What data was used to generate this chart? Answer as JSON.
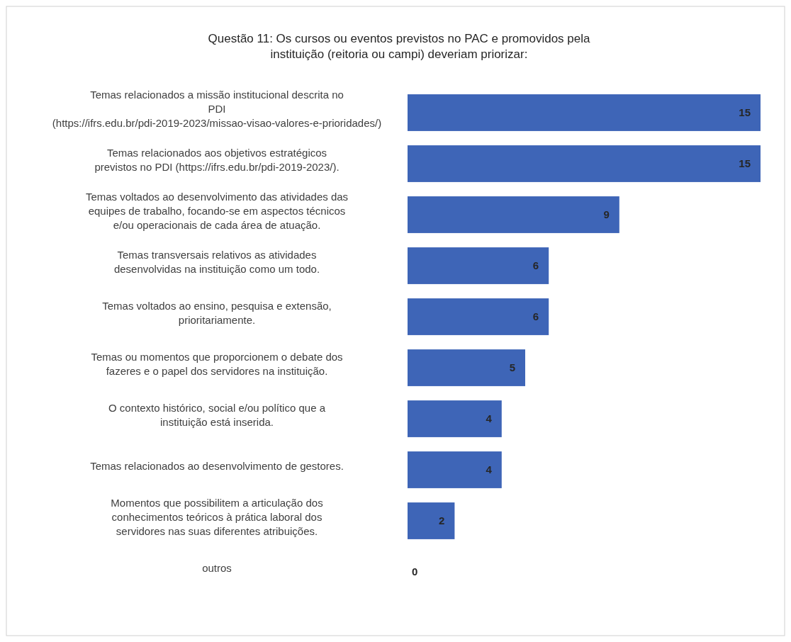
{
  "chart_data": {
    "type": "bar",
    "orientation": "horizontal",
    "title": "Questão 11: Os cursos ou eventos previstos no PAC e promovidos pela instituição (reitoria ou campi) deveriam priorizar:",
    "categories": [
      "Temas relacionados a missão institucional descrita no PDI (https://ifrs.edu.br/pdi-2019-2023/missao-visao-valores-e-prioridades/)",
      "Temas relacionados aos objetivos estratégicos previstos no PDI (https://ifrs.edu.br/pdi-2019-2023/).",
      "Temas voltados ao desenvolvimento das atividades das equipes de trabalho, focando-se em aspectos técnicos e/ou operacionais de cada área de atuação.",
      "Temas transversais relativos as atividades desenvolvidas na instituição como um todo.",
      "Temas voltados ao ensino, pesquisa e extensão, prioritariamente.",
      "Temas ou momentos que proporcionem o debate dos fazeres e o papel dos servidores na instituição.",
      "O contexto histórico, social e/ou político que a instituição está inserida.",
      "Temas relacionados ao desenvolvimento de gestores.",
      "Momentos que possibilitem a articulação dos conhecimentos teóricos à prática laboral dos servidores nas suas diferentes atribuições.",
      "outros"
    ],
    "values": [
      15,
      15,
      9,
      6,
      6,
      5,
      4,
      4,
      2,
      0
    ],
    "color": "#3e65b7",
    "xlim": [
      0,
      15
    ],
    "data_labels": true,
    "tick_labels": "y"
  }
}
